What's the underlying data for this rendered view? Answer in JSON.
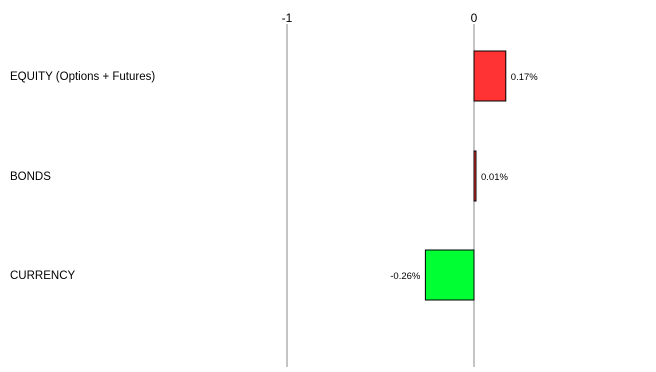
{
  "chart_data": {
    "type": "bar",
    "orientation": "horizontal",
    "categories": [
      "EQUITY (Options + Futures)",
      "BONDS",
      "CURRENCY"
    ],
    "values": [
      0.17,
      0.01,
      -0.26
    ],
    "value_labels": [
      "0.17%",
      "0.01%",
      "-0.26%"
    ],
    "xlim": [
      -1,
      1
    ],
    "x_ticks": [
      -1,
      0
    ],
    "x_tick_labels": [
      "-1",
      "0"
    ],
    "x_tick_position": "top",
    "grid": false,
    "legend": "none",
    "colors": {
      "positive": "#ff3333",
      "negative": "#00ff33",
      "bar_edge": "#000000",
      "axis": "#888888"
    }
  }
}
